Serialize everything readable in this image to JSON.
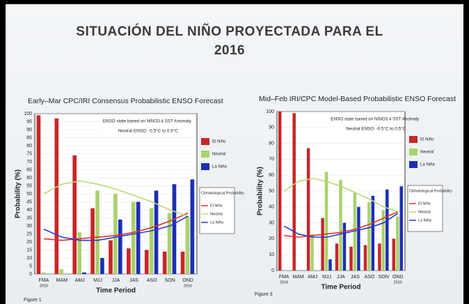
{
  "slide": {
    "title": "SITUACIÓN DEL NIÑO PROYECTADA PARA EL 2016"
  },
  "chart_data": [
    {
      "type": "bar",
      "title": "Early–Mar CPC/IRI Consensus Probabilistic ENSO Forecast",
      "x_label": "Time Period",
      "y_label": "Probability (%)",
      "categories": [
        "FMA",
        "MAM",
        "AMJ",
        "MJJ",
        "JJA",
        "JAS",
        "ASO",
        "SON",
        "OND"
      ],
      "category_years": [
        "2016",
        null,
        null,
        null,
        null,
        null,
        null,
        null,
        "2016"
      ],
      "ylim": [
        0,
        100
      ],
      "yticks": [
        0,
        5,
        10,
        15,
        20,
        25,
        30,
        35,
        40,
        45,
        50,
        55,
        60,
        65,
        70,
        75,
        80,
        85,
        90,
        95,
        100
      ],
      "grid": true,
      "annotations": [
        "ENSO state based on NINO3.4 SST Anomaly",
        "Neutral ENSO: -0.5°C to 0.5°C"
      ],
      "series": [
        {
          "name": "El Niño",
          "color": "#c8262a",
          "values": [
            99,
            97,
            74,
            41,
            21,
            16,
            15,
            14,
            14
          ]
        },
        {
          "name": "Neutral",
          "color": "#a8d36c",
          "values": [
            1,
            3,
            26,
            52,
            50,
            45,
            41,
            38,
            36
          ]
        },
        {
          "name": "La Niña",
          "color": "#1c2fb4",
          "values": [
            0,
            0,
            1,
            10,
            34,
            45,
            52,
            56,
            59
          ]
        }
      ],
      "climatology": {
        "title": "Climatological Probability:",
        "series": [
          {
            "name": "El Niño",
            "color": "#e0302a",
            "values": [
              22,
              21,
              22,
              23,
              24,
              26,
              29,
              33,
              38
            ]
          },
          {
            "name": "Neutral",
            "color": "#b9da74",
            "values": [
              50,
              56,
              58,
              56,
              53,
              49,
              45,
              40,
              36
            ]
          },
          {
            "name": "La Niña",
            "color": "#2a3cc8",
            "values": [
              28,
              23,
              21,
              21,
              23,
              25,
              27,
              30,
              36
            ]
          }
        ]
      },
      "figure_label": "Figure 1"
    },
    {
      "type": "bar",
      "title": "Mid–Feb IRI/CPC Model-Based Probabilistic ENSO Forecast",
      "x_label": "Time Period",
      "y_label": "Probability (%)",
      "categories": [
        "FMA",
        "MAM",
        "AMJ",
        "MJJ",
        "JJA",
        "JAS",
        "ASO",
        "SON",
        "OND"
      ],
      "category_years": [
        "2016",
        null,
        null,
        null,
        null,
        null,
        null,
        null,
        "2016"
      ],
      "ylim": [
        0,
        100
      ],
      "yticks": [
        0,
        10,
        20,
        30,
        40,
        50,
        60,
        70,
        80,
        90,
        100
      ],
      "grid": true,
      "annotations": [
        "ENSO state based on NINO3.4 SST Anomaly",
        "Neutral ENSO: -0.5°C to 0.5°C"
      ],
      "series": [
        {
          "name": "El Niño",
          "color": "#c8262a",
          "values": [
            100,
            99,
            77,
            33,
            17,
            15,
            16,
            17,
            20
          ]
        },
        {
          "name": "Neutral",
          "color": "#a8d36c",
          "values": [
            0,
            0,
            23,
            62,
            57,
            49,
            43,
            38,
            34
          ]
        },
        {
          "name": "La Niña",
          "color": "#1c2fb4",
          "values": [
            0,
            0,
            0,
            7,
            30,
            40,
            47,
            51,
            53
          ]
        }
      ],
      "climatology": {
        "title": "Climatological Probability:",
        "series": [
          {
            "name": "El Niño",
            "color": "#e0302a",
            "values": [
              22,
              21,
              22,
              23,
              24,
              26,
              29,
              33,
              37
            ]
          },
          {
            "name": "Neutral",
            "color": "#b9da74",
            "values": [
              50,
              56,
              58,
              56,
              53,
              49,
              45,
              40,
              37
            ]
          },
          {
            "name": "La Niña",
            "color": "#2a3cc8",
            "values": [
              28,
              23,
              21,
              21,
              23,
              25,
              27,
              30,
              36
            ]
          }
        ]
      },
      "figure_label": "Figure 3"
    }
  ]
}
